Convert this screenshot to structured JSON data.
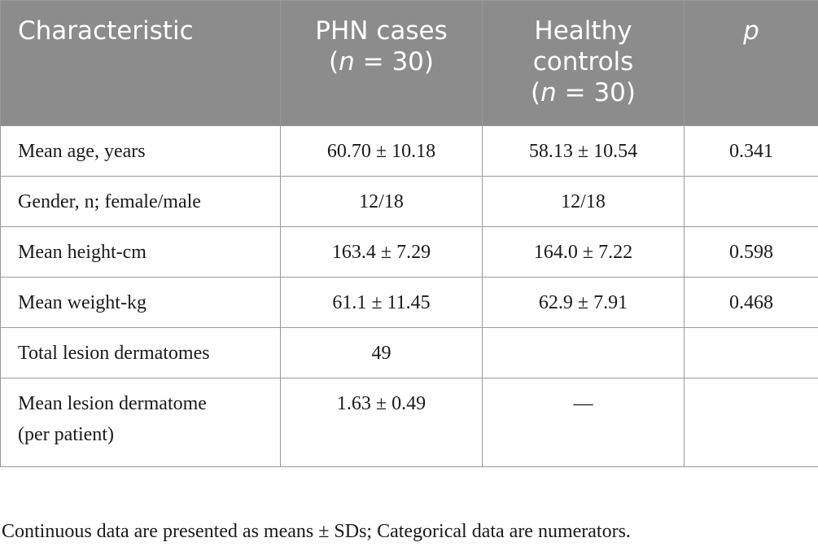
{
  "table": {
    "headers": {
      "characteristic": "Characteristic",
      "phn_line1": "PHN cases",
      "phn_n": "n",
      "phn_rest": " = 30)",
      "healthy_line1": "Healthy",
      "healthy_line2": "controls",
      "healthy_n": "n",
      "healthy_rest": " = 30)",
      "p": "p",
      "open_paren": "("
    },
    "rows": [
      {
        "characteristic": "Mean age, years",
        "phn": "60.70 ± 10.18",
        "healthy": "58.13 ± 10.54",
        "p": "0.341"
      },
      {
        "characteristic": "Gender, n; female/male",
        "phn": "12/18",
        "healthy": "12/18",
        "p": ""
      },
      {
        "characteristic": "Mean height-cm",
        "phn": "163.4 ± 7.29",
        "healthy": "164.0 ± 7.22",
        "p": "0.598"
      },
      {
        "characteristic": "Mean weight-kg",
        "phn": "61.1 ± 11.45",
        "healthy": "62.9 ± 7.91",
        "p": "0.468"
      },
      {
        "characteristic": "Total lesion dermatomes",
        "phn": "49",
        "healthy": "",
        "p": ""
      },
      {
        "characteristic_line1": "Mean lesion dermatome",
        "characteristic_line2": "(per patient)",
        "phn": "1.63 ± 0.49",
        "healthy": "—",
        "p": ""
      }
    ]
  },
  "footnote": "Continuous data are presented as means ± SDs; Categorical data are numerators."
}
